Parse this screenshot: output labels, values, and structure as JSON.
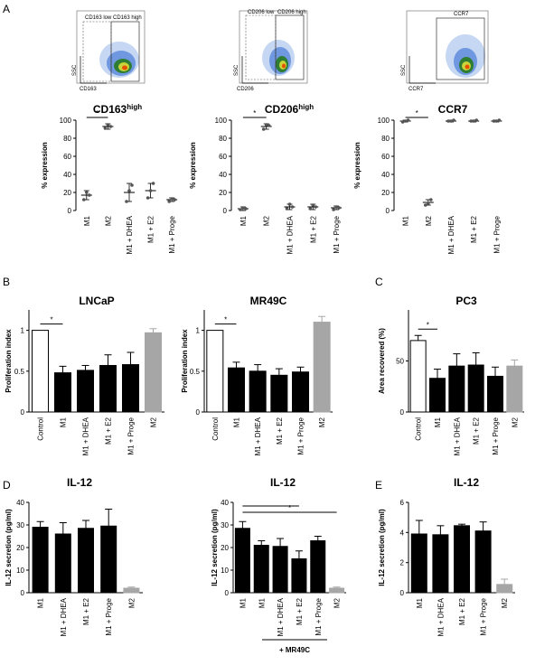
{
  "panel_labels": [
    "A",
    "B",
    "C",
    "D",
    "E"
  ],
  "flow": [
    {
      "gates": [
        "CD163 low",
        "CD163 high"
      ],
      "ylabel": "SSC",
      "xlabel": "CD163"
    },
    {
      "gates": [
        "CD206 low",
        "CD206 high"
      ],
      "ylabel": "SSC",
      "xlabel": "CD206"
    },
    {
      "gates": [
        "CCR7"
      ],
      "ylabel": "SSC",
      "xlabel": "CCR7"
    }
  ],
  "footer": {
    "label": "+ MR49C"
  },
  "colors": {
    "black_bar": "#000000",
    "gray_bar": "#a6a6a6",
    "white_bar": "#ffffff"
  },
  "chart_data": [
    {
      "type": "scatter",
      "title": "CD163",
      "title_sup": "high",
      "ylabel": "% expression",
      "categories": [
        "M1",
        "M2",
        "M1 + DHEA",
        "M1 + E2",
        "M1 + Proge"
      ],
      "ylim": [
        0,
        100
      ],
      "yticks": [
        0,
        20,
        40,
        60,
        80,
        100
      ],
      "means": [
        17,
        93,
        20,
        22,
        12
      ],
      "errors": [
        5,
        3,
        10,
        8,
        2
      ],
      "points": [
        [
          12,
          20,
          17
        ],
        [
          91,
          95,
          93
        ],
        [
          10,
          22,
          28
        ],
        [
          14,
          22,
          30
        ],
        [
          10,
          13,
          12
        ]
      ],
      "significance": [
        {
          "from": 0,
          "to": 1,
          "label": "*"
        }
      ]
    },
    {
      "type": "scatter",
      "title": "CD206",
      "title_sup": "high",
      "ylabel": "% expression",
      "categories": [
        "M1",
        "M2",
        "M1 + DHEA",
        "M1 + E2",
        "M1 + Proge"
      ],
      "ylim": [
        0,
        100
      ],
      "yticks": [
        0,
        20,
        40,
        60,
        80,
        100
      ],
      "means": [
        2,
        93,
        4,
        4,
        3
      ],
      "errors": [
        2,
        3,
        3,
        3,
        2
      ],
      "points": [
        [
          1,
          3,
          2
        ],
        [
          90,
          95,
          94
        ],
        [
          2,
          7,
          4
        ],
        [
          2,
          6,
          4
        ],
        [
          1,
          4,
          3
        ]
      ],
      "significance": [
        {
          "from": 0,
          "to": 1,
          "label": "*"
        }
      ]
    },
    {
      "type": "scatter",
      "title": "CCR7",
      "title_sup": "",
      "ylabel": "% expression",
      "categories": [
        "M1",
        "M2",
        "M1 + DHEA",
        "M1 + E2",
        "M1 + Proge"
      ],
      "ylim": [
        0,
        100
      ],
      "yticks": [
        0,
        20,
        40,
        60,
        80,
        100
      ],
      "means": [
        99,
        9,
        99,
        99,
        99
      ],
      "errors": [
        1,
        3,
        1,
        1,
        1
      ],
      "points": [
        [
          98,
          99,
          100
        ],
        [
          6,
          8,
          12
        ],
        [
          99,
          99,
          100
        ],
        [
          99,
          99,
          100
        ],
        [
          99,
          99,
          100
        ]
      ],
      "significance": [
        {
          "from": 0,
          "to": 1,
          "label": "*"
        }
      ]
    },
    {
      "type": "bar",
      "title": "LNCaP",
      "ylabel": "Proliferation index",
      "categories": [
        "Control",
        "M1",
        "M1 + DHEA",
        "M1 + E2",
        "M1 + Proge",
        "M2"
      ],
      "values": [
        1.0,
        0.48,
        0.51,
        0.57,
        0.58,
        0.97
      ],
      "errors": [
        0,
        0.08,
        0.06,
        0.13,
        0.15,
        0.05
      ],
      "fills": [
        "white",
        "black",
        "black",
        "black",
        "black",
        "gray"
      ],
      "ylim": [
        0,
        1.25
      ],
      "yticks": [
        0,
        0.5,
        1
      ],
      "ytick_labels": [
        "0",
        "0.5",
        "1"
      ],
      "significance": [
        {
          "from": 0,
          "to": 1,
          "label": "*"
        }
      ]
    },
    {
      "type": "bar",
      "title": "MR49C",
      "ylabel": "Proliferation index",
      "categories": [
        "Control",
        "M1",
        "M1 + DHEA",
        "M1 + E2",
        "M1 + Proge",
        "M2"
      ],
      "values": [
        1.0,
        0.54,
        0.5,
        0.45,
        0.49,
        1.1
      ],
      "errors": [
        0,
        0.07,
        0.08,
        0.08,
        0.06,
        0.07
      ],
      "fills": [
        "white",
        "black",
        "black",
        "black",
        "black",
        "gray"
      ],
      "ylim": [
        0,
        1.25
      ],
      "yticks": [
        0,
        0.5,
        1
      ],
      "ytick_labels": [
        "0",
        "0.5",
        "1"
      ],
      "significance": [
        {
          "from": 0,
          "to": 1,
          "label": "*"
        }
      ]
    },
    {
      "type": "bar",
      "title": "PC3",
      "ylabel": "Area recovered (%)",
      "categories": [
        "Control",
        "M1",
        "M1 + DHEA",
        "M1 + E2",
        "M1 + Proge",
        "M2"
      ],
      "values": [
        70,
        33,
        45,
        46,
        35,
        45
      ],
      "errors": [
        5,
        9,
        12,
        12,
        9,
        6
      ],
      "fills": [
        "white",
        "black",
        "black",
        "black",
        "black",
        "gray"
      ],
      "ylim": [
        0,
        100
      ],
      "yticks": [
        0,
        50
      ],
      "ytick_labels": [
        "0",
        "50"
      ],
      "significance": [
        {
          "from": 0,
          "to": 1,
          "label": "*"
        }
      ]
    },
    {
      "type": "bar",
      "title": "IL-12",
      "ylabel": "IL-12 secretion (pg/ml)",
      "categories": [
        "M1",
        "M1 +  DHEA",
        "M1 + E2",
        "M1 + Proge",
        "M2"
      ],
      "values": [
        29,
        26,
        28.5,
        29.5,
        2
      ],
      "errors": [
        2.5,
        5,
        3.5,
        7.5,
        0.5
      ],
      "fills": [
        "black",
        "black",
        "black",
        "black",
        "gray"
      ],
      "ylim": [
        0,
        40
      ],
      "yticks": [
        0,
        10,
        20,
        30,
        40
      ],
      "ytick_labels": [
        "0",
        "10",
        "20",
        "30",
        "40"
      ],
      "significance": []
    },
    {
      "type": "bar",
      "title": "IL-12",
      "ylabel": "IL-12 secretion (pg/ml)",
      "categories": [
        "M1",
        "M1",
        "M1 + DHEA",
        "M1 + E2",
        "M1 + Proge",
        "M2"
      ],
      "values": [
        28.5,
        21,
        20.5,
        15,
        23,
        2
      ],
      "errors": [
        3,
        2,
        3.5,
        3.5,
        2,
        0.5
      ],
      "fills": [
        "black",
        "black",
        "black",
        "black",
        "black",
        "gray"
      ],
      "ylim": [
        0,
        40
      ],
      "yticks": [
        0,
        10,
        20,
        30,
        40
      ],
      "ytick_labels": [
        "0",
        "10",
        "20",
        "30",
        "40"
      ],
      "significance": [
        {
          "from": 0,
          "to": 3,
          "label": ""
        },
        {
          "from": 0,
          "to": 5,
          "label": "*"
        }
      ]
    },
    {
      "type": "bar",
      "title": "IL-12",
      "ylabel": "IL-12 secretion (pg/ml)",
      "categories": [
        "M1",
        "M1 + DHEA",
        "M1 + E2",
        "M1 + Proge",
        "M2"
      ],
      "values": [
        3.9,
        3.85,
        4.45,
        4.1,
        0.55
      ],
      "errors": [
        0.9,
        0.6,
        0.1,
        0.6,
        0.35
      ],
      "fills": [
        "black",
        "black",
        "black",
        "black",
        "gray"
      ],
      "ylim": [
        0,
        6
      ],
      "yticks": [
        0,
        2,
        4,
        6
      ],
      "ytick_labels": [
        "0",
        "2",
        "4",
        "6"
      ],
      "significance": []
    }
  ]
}
